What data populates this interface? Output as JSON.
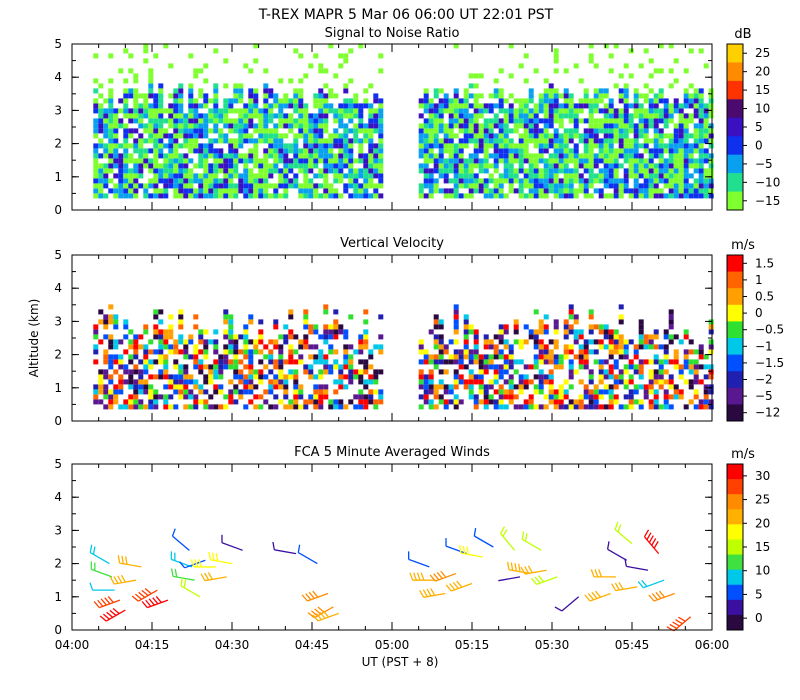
{
  "header": {
    "title": "T-REX   MAPR   5 Mar 06   06:00 UT   22:01   PST"
  },
  "time_axis": {
    "range": [
      0,
      120
    ],
    "ticks": [
      0,
      15,
      30,
      45,
      60,
      75,
      90,
      105,
      120
    ],
    "tick_labels": [
      "04:00",
      "04:15",
      "04:30",
      "04:45",
      "05:00",
      "05:15",
      "05:30",
      "05:45",
      "06:00"
    ],
    "xlabel": "UT  (PST + 8)"
  },
  "chart_data": [
    {
      "id": "snr",
      "type": "heatmap",
      "title": "Signal to Noise Ratio",
      "ylabel": "",
      "ylim": [
        0,
        5
      ],
      "yticks": [
        0,
        1,
        2,
        3,
        4,
        5
      ],
      "unit": "dB",
      "colorbar": {
        "labels": [
          "25",
          "20",
          "15",
          "10",
          "5",
          "0",
          "−5",
          "−10",
          "−15"
        ],
        "colors": [
          "#ffd000",
          "#ff8c00",
          "#ff3300",
          "#4a0a6e",
          "#3a10c0",
          "#1030f0",
          "#0aa0f0",
          "#20e090",
          "#80ff30"
        ]
      },
      "data_gap": [
        58,
        65
      ],
      "blocks": [
        [
          4,
          58
        ],
        [
          65,
          120
        ]
      ]
    },
    {
      "id": "velocity",
      "type": "heatmap",
      "title": "Vertical Velocity",
      "ylabel": "Altitude (km)",
      "ylim": [
        0,
        5
      ],
      "yticks": [
        0,
        1,
        2,
        3,
        4,
        5
      ],
      "unit": "m/s",
      "colorbar": {
        "labels": [
          "1.5",
          "1",
          "0.5",
          "0",
          "−0.5",
          "−1",
          "−1.5",
          "−2",
          "−5",
          "−12"
        ],
        "colors": [
          "#ff0000",
          "#ff6400",
          "#ffa000",
          "#ffff00",
          "#30e030",
          "#00c8e8",
          "#0050ff",
          "#2020b0",
          "#5a1890",
          "#2a0840"
        ]
      },
      "data_gap": [
        58,
        65
      ],
      "blocks": [
        [
          4,
          58
        ],
        [
          65,
          120
        ]
      ]
    },
    {
      "id": "winds",
      "type": "scatter",
      "title": "FCA 5 Minute Averaged Winds",
      "ylabel": "",
      "ylim": [
        0,
        5
      ],
      "yticks": [
        0,
        1,
        2,
        3,
        4,
        5
      ],
      "unit": "m/s",
      "colorbar": {
        "labels": [
          "30",
          "25",
          "20",
          "15",
          "10",
          "5",
          "0"
        ],
        "colors": [
          "#ff0000",
          "#ff4000",
          "#ff8c00",
          "#ffb000",
          "#ffff00",
          "#c0ff00",
          "#40e040",
          "#00c8e8",
          "#0050ff",
          "#3a10a0",
          "#2a0840"
        ]
      },
      "barbs": [
        {
          "t": 7,
          "alt": 2.0,
          "dir": 300,
          "spd": 10
        },
        {
          "t": 7.5,
          "alt": 1.6,
          "dir": 290,
          "spd": 12
        },
        {
          "t": 8,
          "alt": 1.2,
          "dir": 270,
          "spd": 8
        },
        {
          "t": 9,
          "alt": 0.9,
          "dir": 250,
          "spd": 28
        },
        {
          "t": 10,
          "alt": 0.6,
          "dir": 240,
          "spd": 30
        },
        {
          "t": 12,
          "alt": 1.5,
          "dir": 260,
          "spd": 22
        },
        {
          "t": 13,
          "alt": 1.9,
          "dir": 280,
          "spd": 20
        },
        {
          "t": 16,
          "alt": 1.2,
          "dir": 240,
          "spd": 28
        },
        {
          "t": 18,
          "alt": 0.9,
          "dir": 250,
          "spd": 30
        },
        {
          "t": 22,
          "alt": 2.4,
          "dir": 310,
          "spd": 6
        },
        {
          "t": 22.5,
          "alt": 1.9,
          "dir": 290,
          "spd": 10
        },
        {
          "t": 23,
          "alt": 1.5,
          "dir": 280,
          "spd": 12
        },
        {
          "t": 24,
          "alt": 1.0,
          "dir": 300,
          "spd": 14
        },
        {
          "t": 25,
          "alt": 2.1,
          "dir": 250,
          "spd": 5
        },
        {
          "t": 27,
          "alt": 1.9,
          "dir": 270,
          "spd": 18
        },
        {
          "t": 29,
          "alt": 1.6,
          "dir": 260,
          "spd": 20
        },
        {
          "t": 30,
          "alt": 2.0,
          "dir": 280,
          "spd": 18
        },
        {
          "t": 32,
          "alt": 2.4,
          "dir": 290,
          "spd": 4
        },
        {
          "t": 42,
          "alt": 2.3,
          "dir": 280,
          "spd": 4
        },
        {
          "t": 46,
          "alt": 2.0,
          "dir": 300,
          "spd": 6
        },
        {
          "t": 48,
          "alt": 1.1,
          "dir": 250,
          "spd": 25
        },
        {
          "t": 49,
          "alt": 0.7,
          "dir": 240,
          "spd": 24
        },
        {
          "t": 50,
          "alt": 0.5,
          "dir": 250,
          "spd": 22
        },
        {
          "t": 67,
          "alt": 1.9,
          "dir": 290,
          "spd": 6
        },
        {
          "t": 68,
          "alt": 1.5,
          "dir": 270,
          "spd": 22
        },
        {
          "t": 70,
          "alt": 1.1,
          "dir": 260,
          "spd": 22
        },
        {
          "t": 72,
          "alt": 1.7,
          "dir": 250,
          "spd": 24
        },
        {
          "t": 74,
          "alt": 2.3,
          "dir": 290,
          "spd": 5
        },
        {
          "t": 75,
          "alt": 1.4,
          "dir": 250,
          "spd": 22
        },
        {
          "t": 77,
          "alt": 2.2,
          "dir": 280,
          "spd": 18
        },
        {
          "t": 79,
          "alt": 2.5,
          "dir": 300,
          "spd": 6
        },
        {
          "t": 83,
          "alt": 2.4,
          "dir": 320,
          "spd": 14
        },
        {
          "t": 84,
          "alt": 1.6,
          "dir": 260,
          "spd": 2
        },
        {
          "t": 86,
          "alt": 1.7,
          "dir": 280,
          "spd": 22
        },
        {
          "t": 88,
          "alt": 2.4,
          "dir": 300,
          "spd": 14
        },
        {
          "t": 89,
          "alt": 1.8,
          "dir": 260,
          "spd": 20
        },
        {
          "t": 91,
          "alt": 1.6,
          "dir": 250,
          "spd": 16
        },
        {
          "t": 95,
          "alt": 1.0,
          "dir": 230,
          "spd": 3
        },
        {
          "t": 101,
          "alt": 1.1,
          "dir": 250,
          "spd": 22
        },
        {
          "t": 102,
          "alt": 1.6,
          "dir": 270,
          "spd": 20
        },
        {
          "t": 104,
          "alt": 2.1,
          "dir": 300,
          "spd": 4
        },
        {
          "t": 105,
          "alt": 2.6,
          "dir": 310,
          "spd": 14
        },
        {
          "t": 106,
          "alt": 1.3,
          "dir": 260,
          "spd": 20
        },
        {
          "t": 108,
          "alt": 1.8,
          "dir": 280,
          "spd": 4
        },
        {
          "t": 110,
          "alt": 2.3,
          "dir": 320,
          "spd": 30
        },
        {
          "t": 111,
          "alt": 1.5,
          "dir": 250,
          "spd": 10
        },
        {
          "t": 113,
          "alt": 1.1,
          "dir": 250,
          "spd": 24
        },
        {
          "t": 116,
          "alt": 0.4,
          "dir": 230,
          "spd": 28
        }
      ]
    }
  ]
}
